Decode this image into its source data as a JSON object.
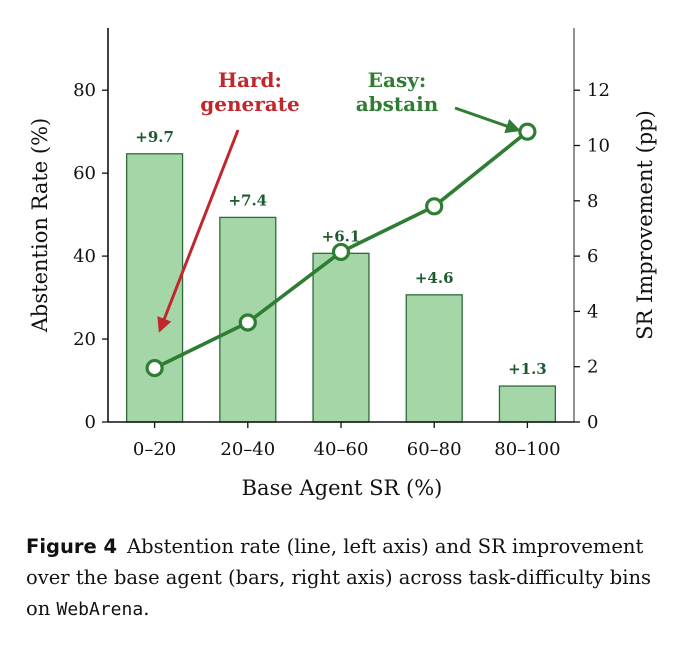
{
  "chart_data": {
    "type": "bar",
    "categories": [
      "0–20",
      "20–40",
      "40–60",
      "60–80",
      "80–100"
    ],
    "xlabel": "Base Agent SR (%)",
    "ylabel_left": "Abstention Rate (%)",
    "ylabel_right": "SR Improvement (pp)",
    "ylim_left": [
      0,
      95
    ],
    "ylim_right": [
      0,
      14.25
    ],
    "yticks_left": [
      0,
      20,
      40,
      60,
      80
    ],
    "yticks_right": [
      0,
      2,
      4,
      6,
      8,
      10,
      12
    ],
    "series": [
      {
        "name": "SR improvement",
        "kind": "bar",
        "axis": "right",
        "values": [
          9.7,
          7.4,
          6.1,
          4.6,
          1.3
        ],
        "labels": [
          "+9.7",
          "+7.4",
          "+6.1",
          "+4.6",
          "+1.3"
        ]
      },
      {
        "name": "Abstention rate",
        "kind": "line",
        "axis": "left",
        "values": [
          13,
          24,
          41,
          52,
          70
        ]
      }
    ],
    "annotations": [
      {
        "text_lines": [
          "Hard:",
          "generate"
        ],
        "color": "#c0282d",
        "target_index": 0
      },
      {
        "text_lines": [
          "Easy:",
          "abstain"
        ],
        "color": "#2e7d32",
        "target_index": 4
      }
    ],
    "colors": {
      "bar_fill": "#a5d6a7",
      "bar_edge": "#2e6b3a",
      "line": "#2e7d32",
      "hard": "#c0282d",
      "easy": "#2e7d32",
      "bar_label": "#1e5a2e"
    },
    "grid": false
  },
  "caption": {
    "label": "Figure 4",
    "text_before": "Abstention rate (line, left axis) and SR improvement over the base agent (bars, right axis) across task-difficulty bins on ",
    "mono": "WebArena",
    "text_after": "."
  }
}
